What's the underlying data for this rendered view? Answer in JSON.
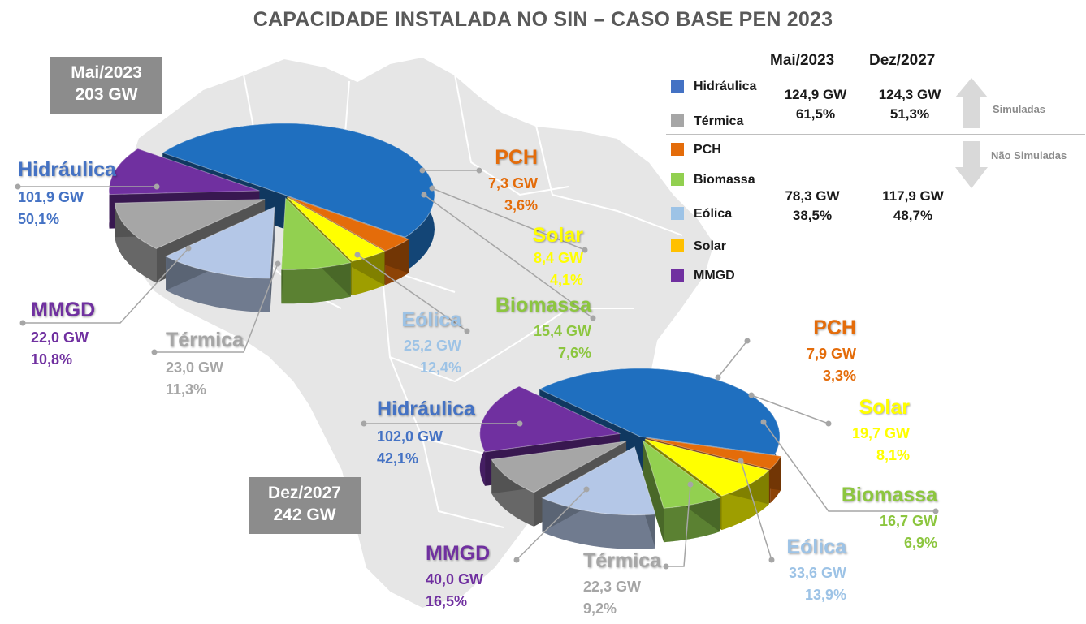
{
  "title": "CAPACIDADE INSTALADA NO SIN – CASO BASE PEN 2023",
  "colors": {
    "Hidráulica": "#1f6fbf",
    "Térmica": "#a6a6a6",
    "PCH": "#e46c0a",
    "Biomassa": "#92d050",
    "Eólica": "#b4c7e7",
    "Solar": "#ffff00",
    "MMGD": "#7030a0"
  },
  "label_colors": {
    "Hidráulica": "#4472c4",
    "Térmica": "#a6a6a6",
    "PCH": "#e46c0a",
    "Biomassa": "#8cc63f",
    "Eólica": "#9dc3e6",
    "Solar": "#ffff00",
    "MMGD": "#7030a0"
  },
  "chart_data": [
    {
      "type": "pie",
      "title": "Mai/2023",
      "total": "203 GW",
      "slices": [
        {
          "name": "Hidráulica",
          "value": 101.9,
          "gw": "101,9 GW",
          "pct": "50,1%"
        },
        {
          "name": "PCH",
          "value": 7.3,
          "gw": "7,3 GW",
          "pct": "3,6%"
        },
        {
          "name": "Solar",
          "value": 8.4,
          "gw": "8,4 GW",
          "pct": "4,1%"
        },
        {
          "name": "Biomassa",
          "value": 15.4,
          "gw": "15,4 GW",
          "pct": "7,6%"
        },
        {
          "name": "Eólica",
          "value": 25.2,
          "gw": "25,2 GW",
          "pct": "12,4%"
        },
        {
          "name": "Térmica",
          "value": 23.0,
          "gw": "23,0 GW",
          "pct": "11,3%"
        },
        {
          "name": "MMGD",
          "value": 22.0,
          "gw": "22,0 GW",
          "pct": "10,8%"
        }
      ]
    },
    {
      "type": "pie",
      "title": "Dez/2027",
      "total": "242 GW",
      "slices": [
        {
          "name": "Hidráulica",
          "value": 102.0,
          "gw": "102,0 GW",
          "pct": "42,1%"
        },
        {
          "name": "PCH",
          "value": 7.9,
          "gw": "7,9 GW",
          "pct": "3,3%"
        },
        {
          "name": "Solar",
          "value": 19.7,
          "gw": "19,7 GW",
          "pct": "8,1%"
        },
        {
          "name": "Biomassa",
          "value": 16.7,
          "gw": "16,7 GW",
          "pct": "6,9%"
        },
        {
          "name": "Eólica",
          "value": 33.6,
          "gw": "33,6 GW",
          "pct": "13,9%"
        },
        {
          "name": "Térmica",
          "value": 22.3,
          "gw": "22,3 GW",
          "pct": "9,2%"
        },
        {
          "name": "MMGD",
          "value": 40.0,
          "gw": "40,0 GW",
          "pct": "16,5%"
        }
      ]
    }
  ],
  "legend": {
    "col1": "Mai/2023",
    "col2": "Dez/2027",
    "items": [
      "Hidráulica",
      "Térmica",
      "PCH",
      "Biomassa",
      "Eólica",
      "Solar",
      "MMGD"
    ],
    "simuladas": {
      "mai_gw": "124,9 GW",
      "mai_pct": "61,5%",
      "dez_gw": "124,3 GW",
      "dez_pct": "51,3%",
      "label": "Simuladas"
    },
    "nao_simuladas": {
      "mai_gw": "78,3 GW",
      "mai_pct": "38,5%",
      "dez_gw": "117,9 GW",
      "dez_pct": "48,7%",
      "label": "Não Simuladas"
    }
  }
}
